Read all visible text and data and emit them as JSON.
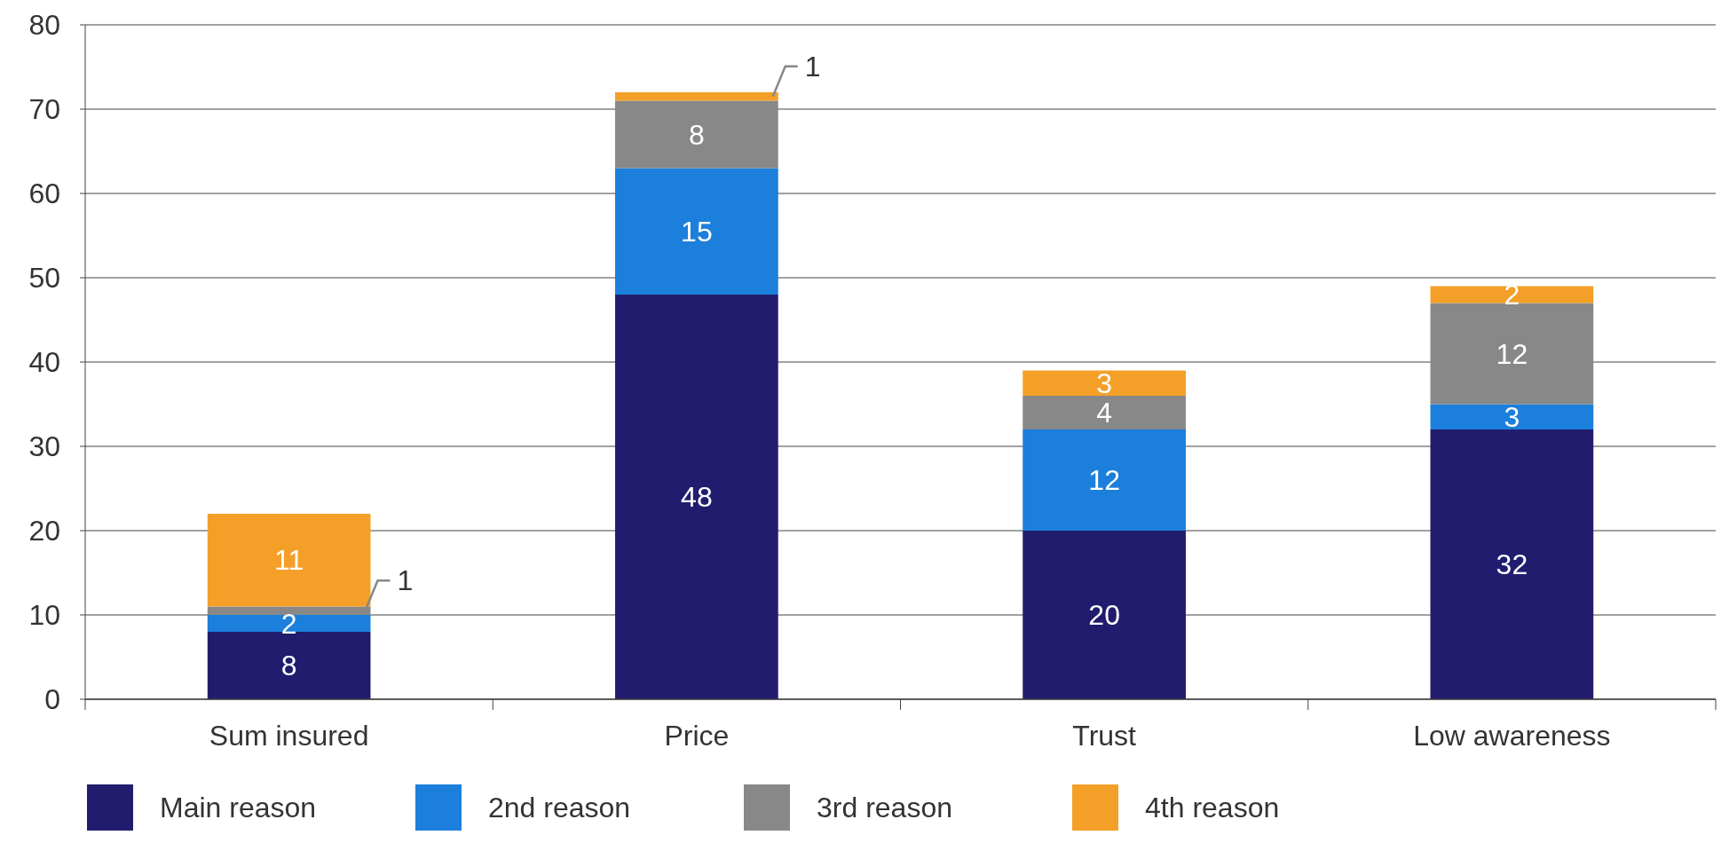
{
  "chart_data": {
    "type": "bar",
    "stacked": true,
    "categories": [
      "Sum insured",
      "Price",
      "Trust",
      "Low awareness"
    ],
    "series": [
      {
        "name": "Main reason",
        "color": "#221c6e",
        "values": [
          8,
          48,
          20,
          32
        ]
      },
      {
        "name": "2nd reason",
        "color": "#1b7fdb",
        "values": [
          2,
          15,
          12,
          3
        ]
      },
      {
        "name": "3rd reason",
        "color": "#888888",
        "values": [
          1,
          8,
          4,
          12
        ]
      },
      {
        "name": "4th reason",
        "color": "#f4a028",
        "values": [
          11,
          1,
          3,
          2
        ]
      }
    ],
    "ylim": [
      0,
      80
    ],
    "yticks": [
      0,
      10,
      20,
      30,
      40,
      50,
      60,
      70,
      80
    ],
    "grid": "y",
    "legend": "bottom",
    "data_labels": true
  }
}
